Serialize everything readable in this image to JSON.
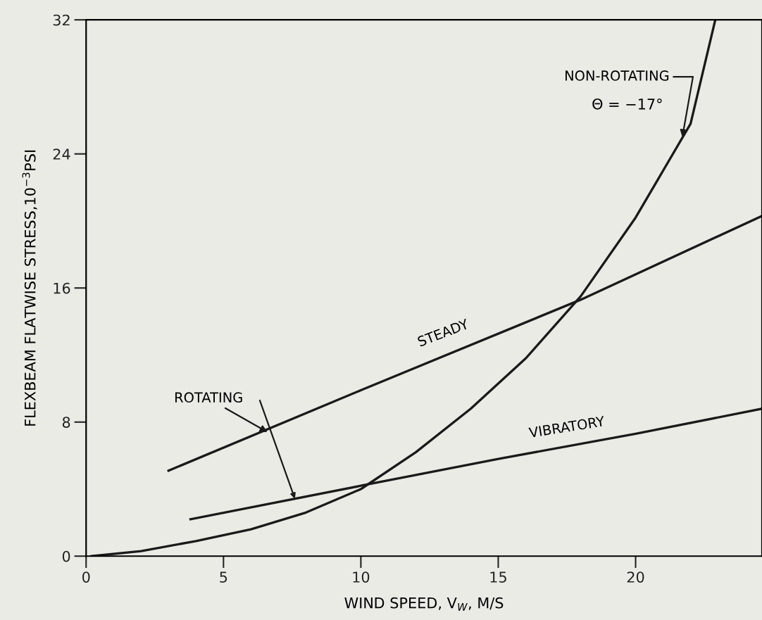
{
  "chart_data": {
    "type": "line",
    "xlabel": "WIND SPEED, V$_{W}$, M/S",
    "ylabel": "FLEXBEAM FLATWISE STRESS,10$^{−3}$PSI",
    "series": [
      {
        "color": "#1a1a1a",
        "x": [
          0.2,
          2,
          4,
          6,
          8,
          10,
          12,
          14,
          16,
          18,
          20,
          21,
          22,
          22.9
        ],
        "values": [
          0,
          0.3,
          0.9,
          1.6,
          2.6,
          4,
          6.2,
          8.8,
          11.8,
          15.5,
          20.2,
          23,
          25.8,
          32
        ]
      },
      {
        "name": "STEADY",
        "color": "#1a1a1a",
        "x": [
          3,
          10,
          18,
          24.6
        ],
        "values": [
          5.1,
          9.9,
          15.3,
          20.3
        ]
      },
      {
        "name": "VIBRATORY",
        "color": "#1a1a1a",
        "x": [
          3.8,
          10,
          15,
          20,
          24.6
        ],
        "values": [
          2.2,
          4.2,
          5.8,
          7.3,
          8.8
        ]
      }
    ],
    "annotations": [
      {
        "text": "NON-ROTATING",
        "x": 21.7,
        "y": 25
      },
      "Θ = −17°",
      {
        "text": "ROTATING",
        "x": 6.6,
        "y": 7.4
      }
    ],
    "xlim": [
      0,
      24.6
    ],
    "ylim": [
      0,
      32
    ],
    "xticks": [
      0,
      5,
      10,
      15,
      20
    ],
    "yticks": [
      0,
      8,
      16,
      24,
      32
    ],
    "grid": false,
    "legend": false,
    "marker": "none",
    "line_style": "solid"
  }
}
